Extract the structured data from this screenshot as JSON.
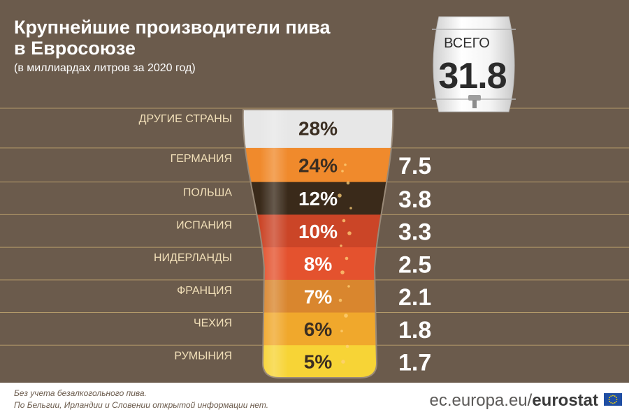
{
  "chart_data": {
    "type": "bar",
    "title": "Крупнейшие производители пива в Евросоюзе",
    "title_lines": [
      "Крупнейшие производители пива",
      "в Евросоюзе"
    ],
    "subtitle": "(в миллиардах литров за 2020 год)",
    "total_label": "ВСЕГО",
    "total_value": 31.8,
    "total_text": "31.8",
    "categories": [
      "ДРУГИЕ СТРАНЫ",
      "ГЕРМАНИЯ",
      "ПОЛЬША",
      "ИСПАНИЯ",
      "НИДЕРЛАНДЫ",
      "ФРАНЦИЯ",
      "ЧЕХИЯ",
      "РУМЫНИЯ"
    ],
    "share_pct": [
      28,
      24,
      12,
      10,
      8,
      7,
      6,
      5
    ],
    "share_labels": [
      "28%",
      "24%",
      "12%",
      "10%",
      "8%",
      "7%",
      "6%",
      "5%"
    ],
    "values": [
      null,
      7.5,
      3.8,
      3.3,
      2.5,
      2.1,
      1.8,
      1.7
    ],
    "value_labels": [
      "",
      "7.5",
      "3.8",
      "3.3",
      "2.5",
      "2.1",
      "1.8",
      "1.7"
    ],
    "colors": [
      "#e7e7e7",
      "#f08a2c",
      "#3a2a1a",
      "#cb4527",
      "#e4522e",
      "#d9862e",
      "#f0a82c",
      "#f7d436"
    ],
    "label_colors": [
      "#3b2e22",
      "#3b2e22",
      "#ffffff",
      "#ffffff",
      "#ffffff",
      "#ffffff",
      "#3b2e22",
      "#3b2e22"
    ]
  },
  "footer": {
    "note1": "Без учета безалкогольного пива.",
    "note2": "По Бельгии, Ирландии и Словении открытой информации нет.",
    "url": "ec.europa.eu/",
    "brand": "eurostat"
  },
  "colors": {
    "background": "#6b5b4c",
    "separator": "#b39a6a",
    "country_label": "#f1dfb8",
    "value_text": "#ffffff",
    "footer_text": "#6b5b4c",
    "eu_blue": "#1f4ea3",
    "eu_stars": "#ffdd00"
  }
}
